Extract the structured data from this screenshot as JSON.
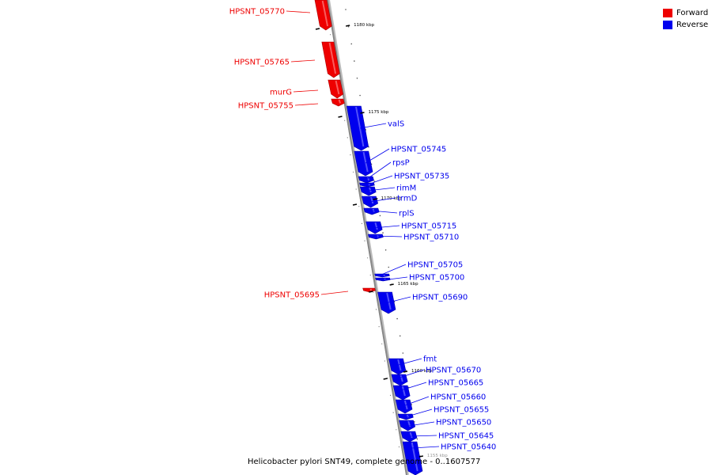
{
  "colors": {
    "forward": "#ee0000",
    "reverse": "#0000ee",
    "backbone": "#888888"
  },
  "legend": {
    "forward": "Forward",
    "reverse": "Reverse"
  },
  "caption": "Helicobacter pylori SNT49, complete genome - 0..1607577",
  "ticks": [
    "1180 kbp",
    "1175 kbp",
    "1170 kbp",
    "1165 kbp",
    "1160 kbp",
    "1155 kbp"
  ],
  "genes": [
    {
      "name": "HPSNT_05770",
      "strand": "forward"
    },
    {
      "name": "HPSNT_05765",
      "strand": "forward"
    },
    {
      "name": "murG",
      "strand": "forward"
    },
    {
      "name": "HPSNT_05755",
      "strand": "forward"
    },
    {
      "name": "valS",
      "strand": "reverse"
    },
    {
      "name": "HPSNT_05745",
      "strand": "reverse"
    },
    {
      "name": "rpsP",
      "strand": "reverse"
    },
    {
      "name": "HPSNT_05735",
      "strand": "reverse"
    },
    {
      "name": "rimM",
      "strand": "reverse"
    },
    {
      "name": "trmD",
      "strand": "reverse"
    },
    {
      "name": "rplS",
      "strand": "reverse"
    },
    {
      "name": "HPSNT_05715",
      "strand": "reverse"
    },
    {
      "name": "HPSNT_05710",
      "strand": "reverse"
    },
    {
      "name": "HPSNT_05705",
      "strand": "reverse"
    },
    {
      "name": "HPSNT_05700",
      "strand": "reverse"
    },
    {
      "name": "HPSNT_05695",
      "strand": "forward"
    },
    {
      "name": "HPSNT_05690",
      "strand": "reverse"
    },
    {
      "name": "fmt",
      "strand": "reverse"
    },
    {
      "name": "HPSNT_05670",
      "strand": "reverse"
    },
    {
      "name": "HPSNT_05665",
      "strand": "reverse"
    },
    {
      "name": "HPSNT_05660",
      "strand": "reverse"
    },
    {
      "name": "HPSNT_05655",
      "strand": "reverse"
    },
    {
      "name": "HPSNT_05650",
      "strand": "reverse"
    },
    {
      "name": "HPSNT_05645",
      "strand": "reverse"
    },
    {
      "name": "HPSNT_05640",
      "strand": "reverse"
    }
  ]
}
